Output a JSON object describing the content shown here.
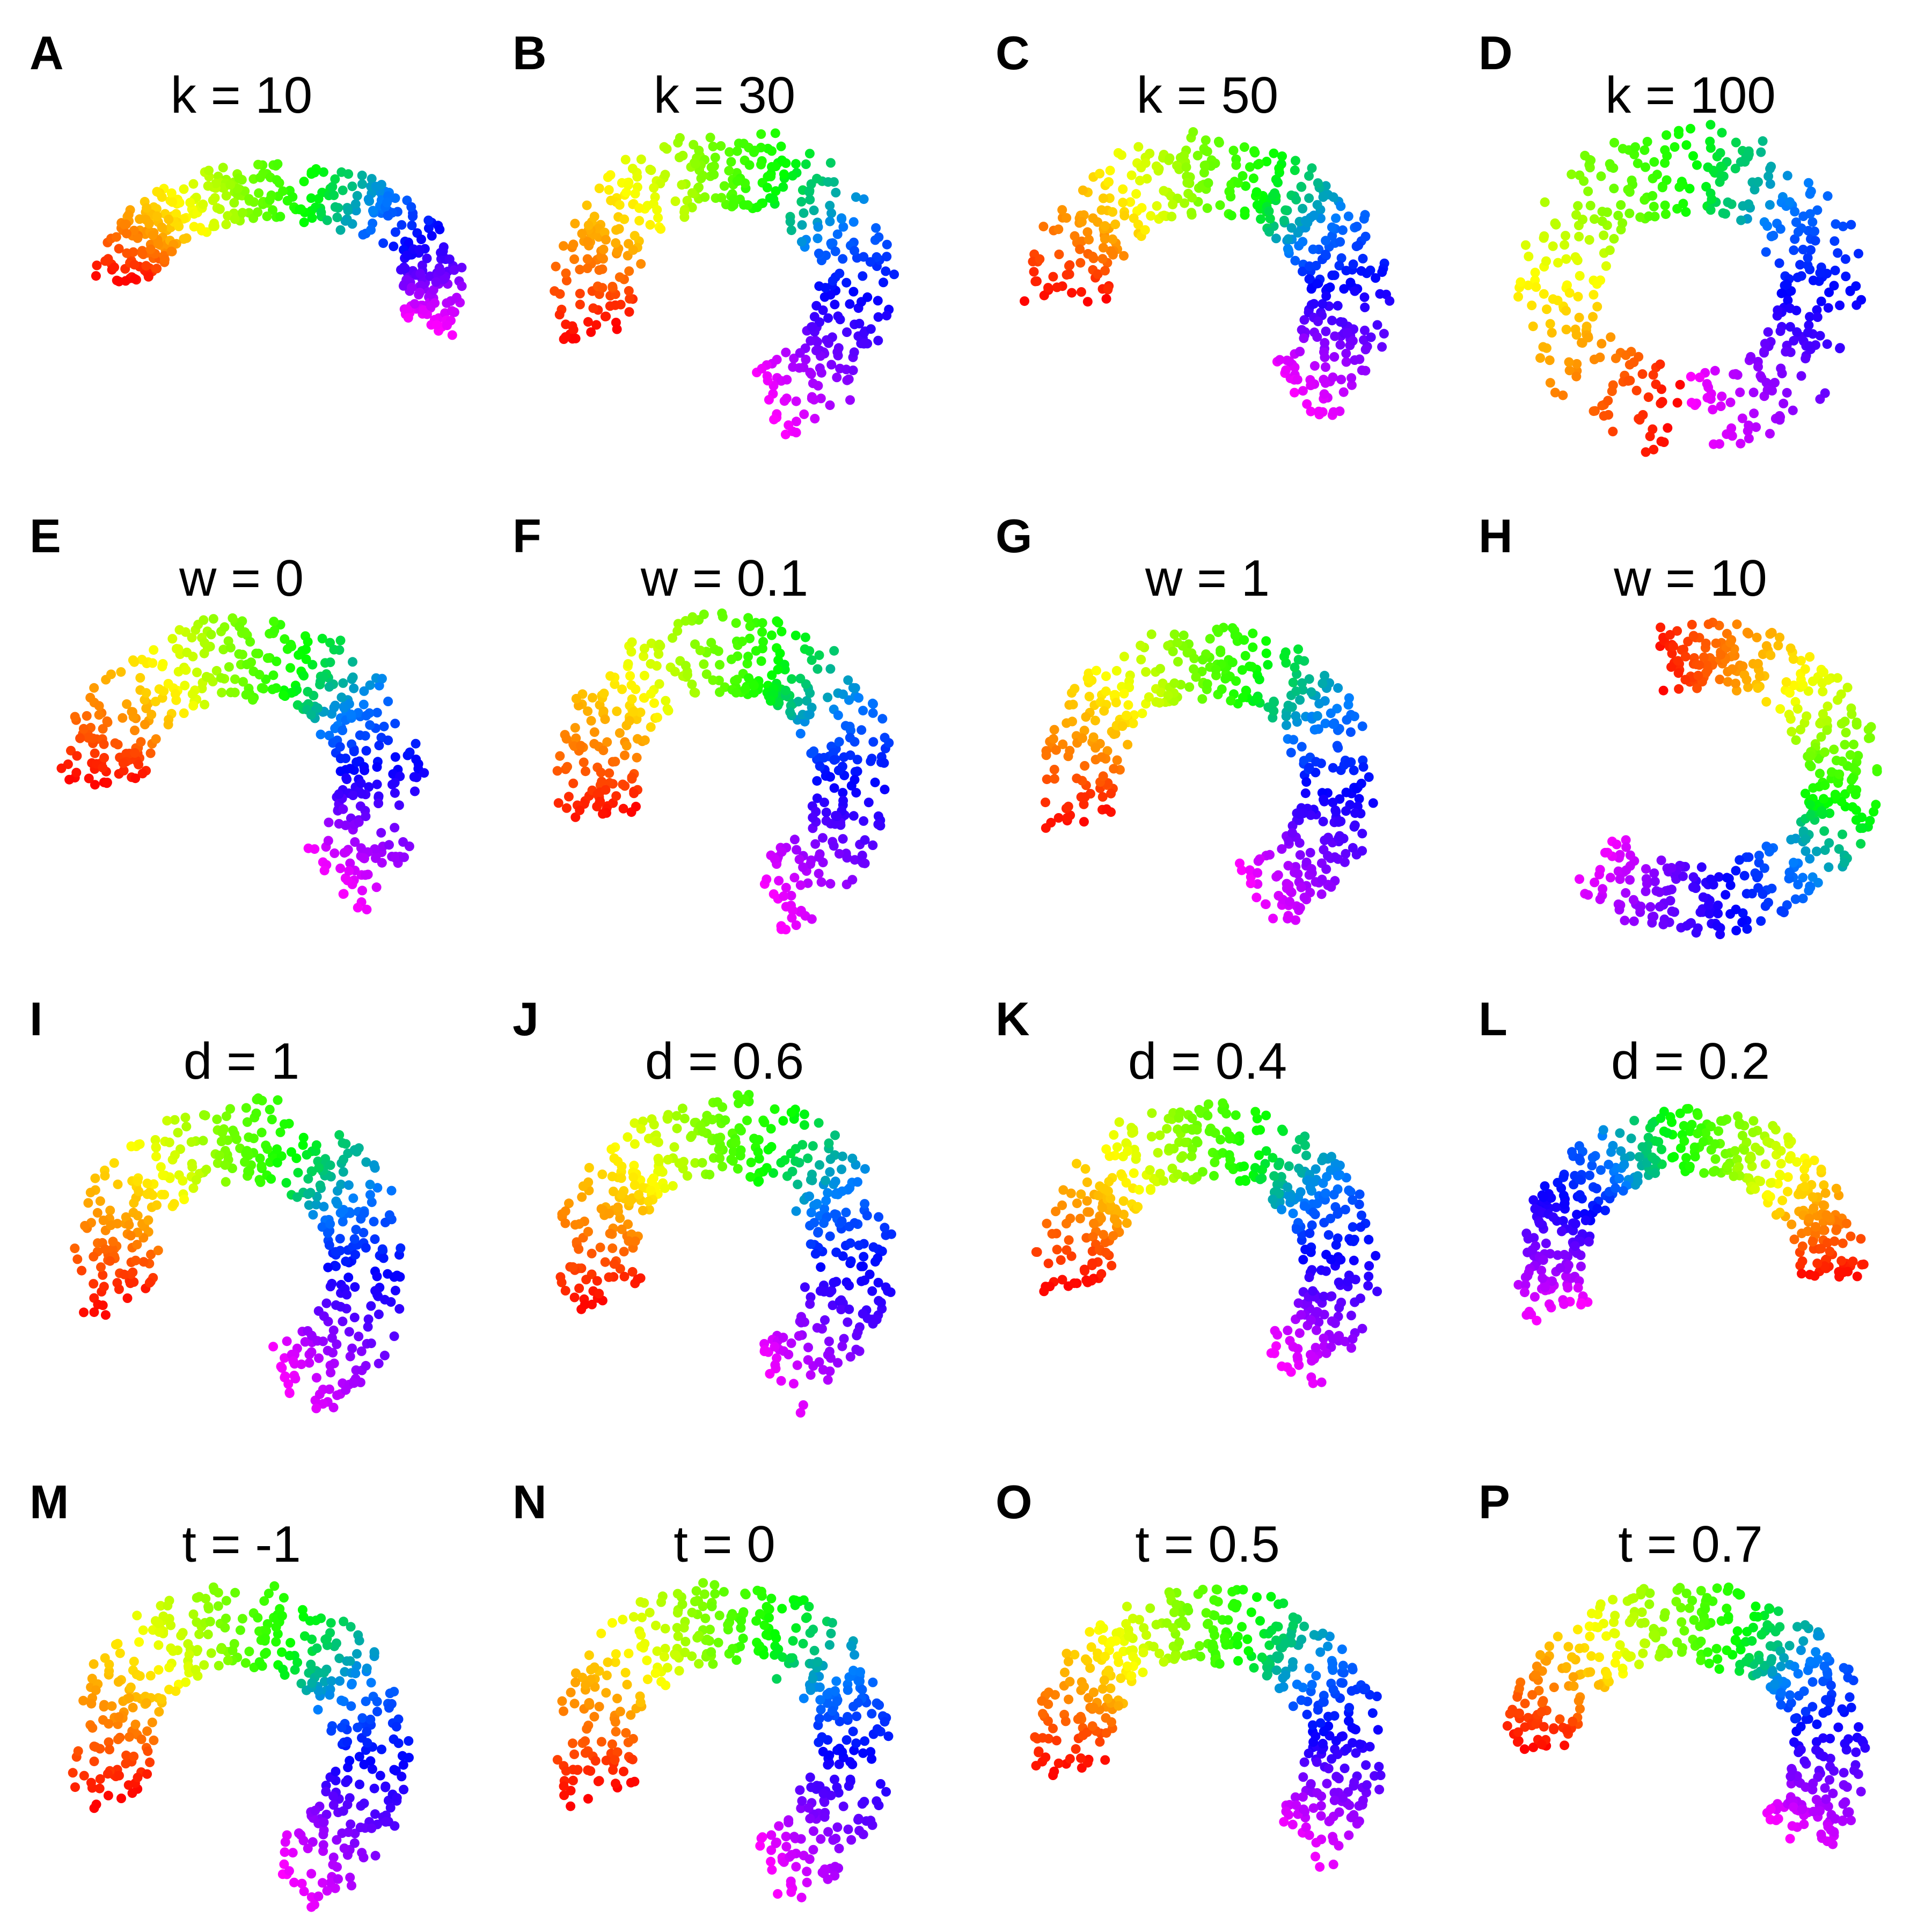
{
  "chart_data": [
    {
      "type": "scatter",
      "panel": "A",
      "title": "k =  10",
      "layout": "A"
    },
    {
      "type": "scatter",
      "panel": "B",
      "title": "k =  30",
      "layout": "B"
    },
    {
      "type": "scatter",
      "panel": "C",
      "title": "k =  50",
      "layout": "C"
    },
    {
      "type": "scatter",
      "panel": "D",
      "title": "k =  100",
      "layout": "D"
    },
    {
      "type": "scatter",
      "panel": "E",
      "title": "w =  0",
      "layout": "E"
    },
    {
      "type": "scatter",
      "panel": "F",
      "title": "w =  0.1",
      "layout": "F"
    },
    {
      "type": "scatter",
      "panel": "G",
      "title": "w =  1",
      "layout": "G"
    },
    {
      "type": "scatter",
      "panel": "H",
      "title": "w =  10",
      "layout": "H"
    },
    {
      "type": "scatter",
      "panel": "I",
      "title": "d =  1",
      "layout": "I"
    },
    {
      "type": "scatter",
      "panel": "J",
      "title": "d =  0.6",
      "layout": "J"
    },
    {
      "type": "scatter",
      "panel": "K",
      "title": "d =  0.4",
      "layout": "K"
    },
    {
      "type": "scatter",
      "panel": "L",
      "title": "d =  0.2",
      "layout": "L"
    },
    {
      "type": "scatter",
      "panel": "M",
      "title": "t =  -1",
      "layout": "M"
    },
    {
      "type": "scatter",
      "panel": "N",
      "title": "t =  0",
      "layout": "N"
    },
    {
      "type": "scatter",
      "panel": "O",
      "title": "t =  0.5",
      "layout": "O"
    },
    {
      "type": "scatter",
      "panel": "P",
      "title": "t =  0.7",
      "layout": "P"
    }
  ],
  "points_per_panel": 420,
  "colormap": [
    "#ff0000",
    "#ff8000",
    "#ffff00",
    "#80ff00",
    "#00ff00",
    "#0080ff",
    "#0000ff",
    "#8000ff",
    "#ff00ff"
  ]
}
